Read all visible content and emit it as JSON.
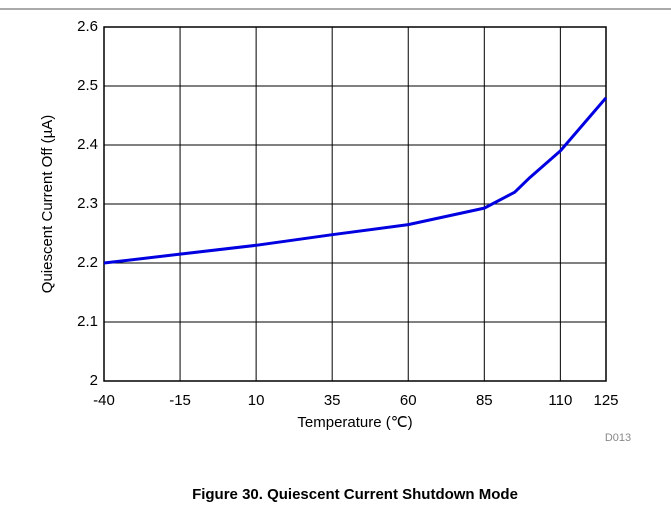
{
  "chart_data": {
    "type": "line",
    "title": "Figure 30. Quiescent Current Shutdown Mode",
    "x_label": "Temperature (℃)",
    "y_label": "Quiescent Current Off (µA)",
    "annotations": [
      "D013"
    ],
    "x": [
      -40,
      -15,
      10,
      35,
      60,
      85,
      95,
      100,
      110,
      120,
      125
    ],
    "series": [
      {
        "name": "Quiescent Current Off",
        "color": "#0000e0",
        "values": [
          2.2,
          2.215,
          2.23,
          2.248,
          2.265,
          2.293,
          2.32,
          2.345,
          2.39,
          2.45,
          2.48
        ]
      }
    ],
    "xlim": [
      -40,
      125
    ],
    "xticks": [
      -40,
      -15,
      10,
      35,
      60,
      85,
      110,
      125
    ],
    "ylim": [
      2,
      2.6
    ],
    "yticks": [
      2,
      2.1,
      2.2,
      2.3,
      2.4,
      2.5,
      2.6
    ],
    "grid": true
  }
}
